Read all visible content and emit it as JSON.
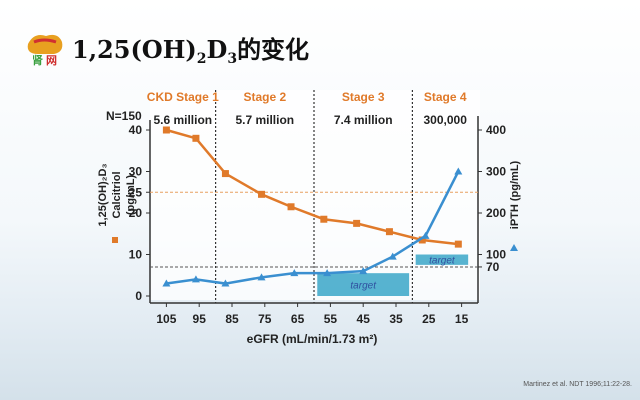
{
  "title": {
    "prefix": "1,25(OH)",
    "sub1": "2",
    "mid": "D",
    "sub2": "3",
    "suffix": "的变化"
  },
  "logo": {
    "icon": "china-kidney-logo-icon",
    "colors": [
      "#e8a020",
      "#d03030",
      "#3aa040"
    ]
  },
  "citation": "Martinez et al. NDT 1996;11:22-28.",
  "chart_data": {
    "type": "line",
    "n_label": "N=150",
    "xlabel": "eGFR (mL/min/1.73 m²)",
    "x_ticks": [
      105,
      95,
      85,
      75,
      65,
      55,
      45,
      35,
      25,
      15
    ],
    "xlim": [
      110,
      10
    ],
    "y_left": {
      "label_lines": [
        "1,25(OH)₂D₃",
        "Calcitriol",
        "(pg/mL)"
      ],
      "ticks": [
        0,
        10,
        20,
        25,
        30,
        40
      ],
      "range": [
        0,
        40
      ],
      "reference_line": 25
    },
    "y_right": {
      "label": "iPTH (pg/mL)",
      "ticks": [
        70,
        100,
        200,
        300,
        400
      ],
      "range": [
        0,
        400
      ],
      "reference_line": 70
    },
    "stages": [
      {
        "label": "CKD Stage 1",
        "count": "5.6 million",
        "x_from": 110,
        "x_to": 90,
        "color": "#e07a2a"
      },
      {
        "label": "Stage 2",
        "count": "5.7 million",
        "x_from": 90,
        "x_to": 60,
        "color": "#e07a2a"
      },
      {
        "label": "Stage 3",
        "count": "7.4 million",
        "x_from": 60,
        "x_to": 30,
        "color": "#e07a2a"
      },
      {
        "label": "Stage 4",
        "count": "300,000",
        "x_from": 30,
        "x_to": 10,
        "color": "#e07a2a"
      }
    ],
    "stage_boundaries": [
      90,
      60,
      30
    ],
    "series": [
      {
        "axis": "left",
        "color": "#e07a2a",
        "marker": "square",
        "x": [
          105,
          96,
          87,
          76,
          67,
          57,
          47,
          37,
          27,
          16
        ],
        "y": [
          40,
          38,
          29.5,
          24.5,
          21.5,
          18.5,
          17.5,
          15.5,
          13.5,
          12.5
        ]
      },
      {
        "axis": "right",
        "color": "#3a8fd0",
        "marker": "triangle",
        "x": [
          105,
          96,
          87,
          76,
          66,
          56,
          45,
          36,
          26,
          16
        ],
        "y": [
          30,
          40,
          30,
          45,
          55,
          55,
          60,
          95,
          145,
          300
        ]
      }
    ],
    "targets": [
      {
        "label": "target",
        "x_from": 59,
        "x_to": 31,
        "y_from": 0,
        "y_to": 55,
        "axis": "right",
        "color": "#3aa6c8"
      },
      {
        "label": "target",
        "x_from": 29,
        "x_to": 13,
        "y_from": 75,
        "y_to": 100,
        "axis": "right",
        "color": "#3aa6c8"
      }
    ],
    "left_legend_marker_color": "#e07a2a"
  }
}
